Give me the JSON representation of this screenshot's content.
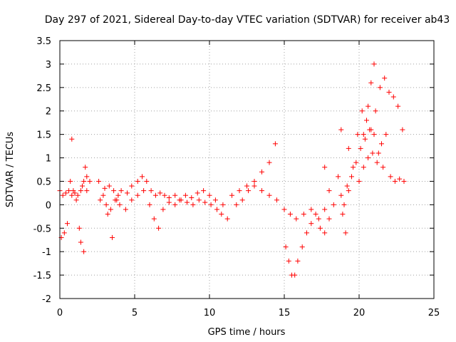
{
  "chart_data": {
    "type": "scatter",
    "title": "Day 297 of 2021, Sidereal Day-to-day VTEC variation (SDTVAR) for receiver ab43",
    "xlabel": "GPS time / hours",
    "ylabel": "SDTVAR / TECUs",
    "xlim": [
      0,
      25
    ],
    "ylim": [
      -2,
      3.5
    ],
    "xticks": [
      0,
      5,
      10,
      15,
      20,
      25
    ],
    "yticks": [
      -2,
      -1.5,
      -1,
      -0.5,
      0,
      0.5,
      1,
      1.5,
      2,
      2.5,
      3,
      3.5
    ],
    "xtick_labels": [
      "0",
      "5",
      "10",
      "15",
      "20",
      "25"
    ],
    "ytick_labels": [
      "-2",
      "-1.5",
      "-1",
      "-0.5",
      "0",
      "0.5",
      "1",
      "1.5",
      "2",
      "2.5",
      "3",
      "3.5"
    ],
    "grid": true,
    "marker": "+",
    "color": "#ff0000",
    "series": [
      {
        "name": "SDTVAR",
        "x": [
          0.0,
          0.2,
          0.4,
          0.6,
          0.8,
          0.9,
          1.0,
          1.1,
          1.2,
          1.4,
          1.5,
          1.6,
          1.8,
          2.0,
          0.1,
          0.3,
          0.5,
          0.7,
          0.8,
          1.3,
          1.4,
          1.6,
          1.7,
          1.8,
          2.6,
          2.9,
          3.2,
          3.5,
          3.8,
          4.1,
          4.5,
          4.8,
          5.2,
          5.5,
          5.8,
          6.1,
          6.4,
          6.7,
          7.0,
          7.3,
          7.7,
          8.0,
          8.4,
          8.8,
          9.2,
          9.6,
          10.0,
          10.4,
          10.8,
          11.2,
          2.7,
          3.1,
          3.4,
          3.7,
          4.0,
          4.4,
          4.8,
          5.2,
          5.6,
          6.0,
          6.3,
          6.6,
          6.9,
          7.3,
          7.7,
          8.1,
          8.5,
          8.9,
          9.3,
          9.7,
          10.1,
          10.5,
          10.9,
          3.0,
          3.3,
          3.6,
          3.9,
          11.5,
          12.0,
          12.5,
          13.0,
          13.5,
          14.0,
          14.4,
          11.8,
          12.2,
          12.6,
          13.0,
          13.5,
          14.0,
          14.5,
          15.0,
          15.4,
          15.8,
          16.3,
          16.8,
          17.3,
          17.7,
          15.1,
          15.3,
          15.5,
          15.7,
          15.9,
          16.2,
          16.5,
          16.8,
          17.1,
          17.4,
          17.7,
          18.0,
          17.7,
          18.0,
          18.3,
          18.6,
          18.8,
          18.8,
          19.0,
          19.3,
          19.6,
          19.9,
          20.2,
          20.5,
          20.8,
          21.1,
          21.4,
          21.7,
          22.0,
          22.3,
          22.6,
          22.9,
          19.2,
          19.5,
          19.8,
          20.1,
          20.3,
          20.6,
          20.8,
          21.0,
          20.0,
          20.3,
          20.6,
          20.9,
          21.2,
          21.5,
          21.8,
          22.1,
          22.4,
          22.7,
          23.0,
          18.9,
          19.1,
          19.3,
          20.4,
          20.7,
          21.0,
          21.3,
          21.6
        ],
        "y": [
          0.3,
          0.2,
          0.25,
          0.3,
          0.2,
          0.3,
          0.25,
          0.1,
          0.2,
          0.3,
          0.4,
          0.5,
          0.6,
          0.5,
          -0.7,
          -0.6,
          -0.4,
          0.5,
          1.4,
          -0.5,
          -0.8,
          -1.0,
          0.8,
          0.3,
          0.5,
          0.2,
          -0.2,
          -0.7,
          0.1,
          0.3,
          0.25,
          0.4,
          0.5,
          0.6,
          0.5,
          0.3,
          0.2,
          0.25,
          0.2,
          0.15,
          0.2,
          0.1,
          0.2,
          0.15,
          0.25,
          0.3,
          0.2,
          0.1,
          -0.2,
          -0.3,
          0.1,
          0.0,
          -0.1,
          0.1,
          0.0,
          -0.1,
          0.1,
          0.2,
          0.3,
          0.0,
          -0.3,
          -0.5,
          -0.1,
          0.05,
          0.0,
          0.1,
          0.05,
          0.0,
          0.1,
          0.05,
          0.0,
          -0.1,
          0.0,
          0.35,
          0.4,
          0.3,
          0.2,
          0.2,
          0.3,
          0.4,
          0.5,
          0.7,
          0.9,
          1.3,
          0.0,
          0.1,
          0.3,
          0.4,
          0.3,
          0.2,
          0.1,
          -0.1,
          -0.2,
          -0.3,
          -0.2,
          -0.1,
          -0.3,
          -0.1,
          -0.9,
          -1.2,
          -1.5,
          -1.5,
          -1.2,
          -0.9,
          -0.6,
          -0.4,
          -0.2,
          -0.5,
          -0.6,
          -0.3,
          0.8,
          0.3,
          0.0,
          0.6,
          1.6,
          0.2,
          0.0,
          0.3,
          0.8,
          1.5,
          2.0,
          1.8,
          1.6,
          2.0,
          2.5,
          2.7,
          2.4,
          2.3,
          2.1,
          1.6,
          0.4,
          0.6,
          0.9,
          1.2,
          1.5,
          2.1,
          2.6,
          3.0,
          0.5,
          0.8,
          1.0,
          1.1,
          0.9,
          1.3,
          1.5,
          0.6,
          0.5,
          0.55,
          0.5,
          -0.2,
          -0.6,
          1.2,
          1.4,
          1.6,
          1.5,
          1.1,
          0.8
        ]
      }
    ]
  }
}
